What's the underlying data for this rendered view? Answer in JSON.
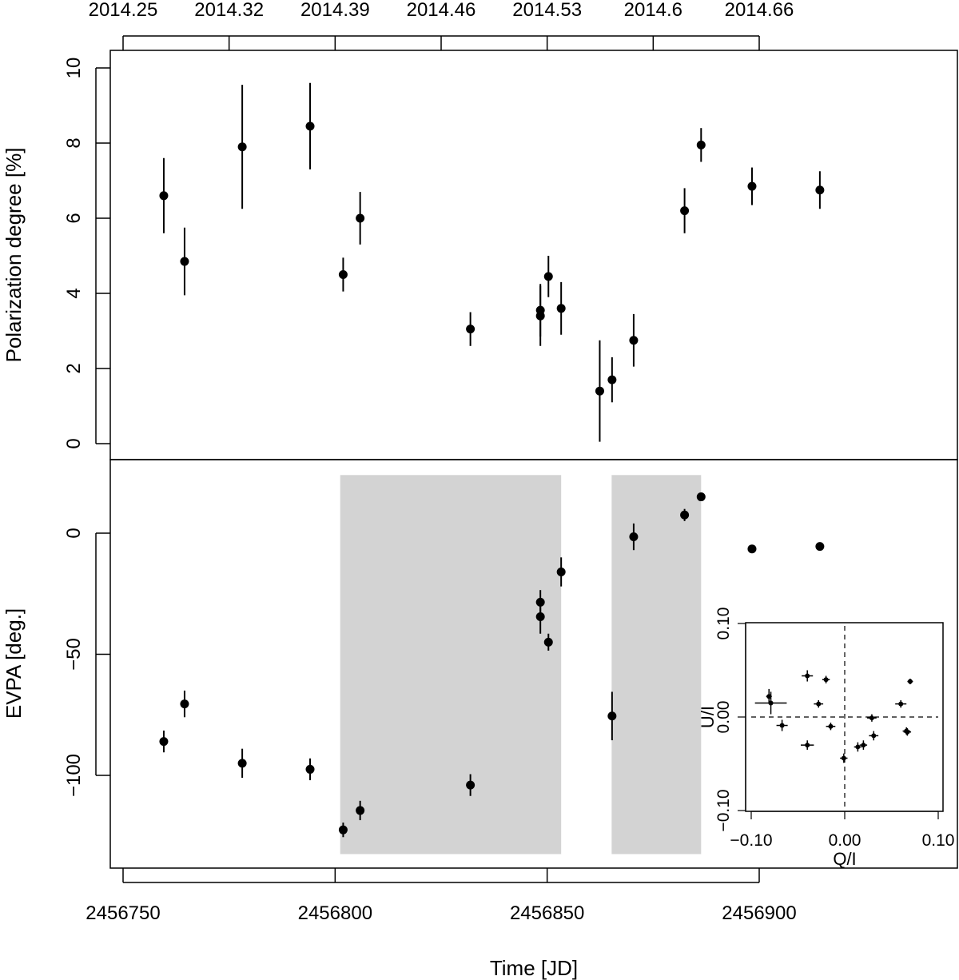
{
  "chart_data": [
    {
      "type": "scatter",
      "panel": "polarization",
      "xlabel": "Time [JD]",
      "ylabel": "Polarization degree [%]",
      "ylim": [
        0,
        10
      ],
      "yticks": [
        0,
        2,
        4,
        6,
        8,
        10
      ],
      "xlim": [
        2456750,
        2456918
      ],
      "xticks": [
        2456750,
        2456800,
        2456850,
        2456900
      ],
      "top_axis_ticks": [
        {
          "x": 2456750,
          "label": "2014.25"
        },
        {
          "x": 2456775,
          "label": "2014.32"
        },
        {
          "x": 2456800,
          "label": "2014.39"
        },
        {
          "x": 2456825,
          "label": "2014.46"
        },
        {
          "x": 2456850,
          "label": "2014.53"
        },
        {
          "x": 2456875,
          "label": "2014.6"
        },
        {
          "x": 2456900,
          "label": "2014.66"
        }
      ],
      "points": [
        {
          "x": 2456759.6,
          "y": 6.6,
          "err": 1.0
        },
        {
          "x": 2456764.5,
          "y": 4.85,
          "err": 0.9
        },
        {
          "x": 2456778.1,
          "y": 7.9,
          "err": 1.65
        },
        {
          "x": 2456794.1,
          "y": 8.45,
          "err": 1.15
        },
        {
          "x": 2456801.9,
          "y": 4.5,
          "err": 0.45
        },
        {
          "x": 2456805.9,
          "y": 6.0,
          "err": 0.7
        },
        {
          "x": 2456831.9,
          "y": 3.05,
          "err": 0.45
        },
        {
          "x": 2456848.4,
          "y": 3.55,
          "err": 0.7
        },
        {
          "x": 2456848.4,
          "y": 3.4,
          "err": 0.8
        },
        {
          "x": 2456850.3,
          "y": 4.45,
          "err": 0.55
        },
        {
          "x": 2456853.3,
          "y": 3.6,
          "err": 0.7
        },
        {
          "x": 2456862.4,
          "y": 1.4,
          "err": 1.35
        },
        {
          "x": 2456865.3,
          "y": 1.7,
          "err": 0.6
        },
        {
          "x": 2456870.4,
          "y": 2.75,
          "err": 0.7
        },
        {
          "x": 2456882.4,
          "y": 6.2,
          "err": 0.6
        },
        {
          "x": 2456886.3,
          "y": 7.95,
          "err": 0.45
        },
        {
          "x": 2456898.3,
          "y": 6.85,
          "err": 0.5
        },
        {
          "x": 2456914.3,
          "y": 6.75,
          "err": 0.5
        }
      ]
    },
    {
      "type": "scatter",
      "panel": "evpa",
      "xlabel": "Time [JD]",
      "ylabel": "EVPA [deg.]",
      "ylim": [
        -138,
        30
      ],
      "yticks": [
        -100,
        -50,
        0
      ],
      "shaded_intervals": [
        [
          2456801.2,
          2456853.3
        ],
        [
          2456865.2,
          2456886.3
        ]
      ],
      "points": [
        {
          "x": 2456759.6,
          "y": -86,
          "err": 4.5
        },
        {
          "x": 2456764.5,
          "y": -70.5,
          "err": 5.5
        },
        {
          "x": 2456778.1,
          "y": -95,
          "err": 6
        },
        {
          "x": 2456794.1,
          "y": -97.5,
          "err": 4.5
        },
        {
          "x": 2456801.9,
          "y": -122.5,
          "err": 3
        },
        {
          "x": 2456805.9,
          "y": -114.5,
          "err": 4
        },
        {
          "x": 2456831.9,
          "y": -104,
          "err": 4.5
        },
        {
          "x": 2456848.4,
          "y": -28.5,
          "err": 5
        },
        {
          "x": 2456848.4,
          "y": -34.5,
          "err": 7
        },
        {
          "x": 2456850.3,
          "y": -45,
          "err": 3.5
        },
        {
          "x": 2456853.3,
          "y": -16,
          "err": 6
        },
        {
          "x": 2456865.3,
          "y": -75.5,
          "err": 10
        },
        {
          "x": 2456870.4,
          "y": -1.5,
          "err": 5.5
        },
        {
          "x": 2456882.4,
          "y": 7.5,
          "err": 2.5
        },
        {
          "x": 2456886.3,
          "y": 15,
          "err": 1.5
        },
        {
          "x": 2456898.3,
          "y": -6.5,
          "err": 1.5
        },
        {
          "x": 2456914.3,
          "y": -5.5,
          "err": 1.5
        }
      ]
    },
    {
      "type": "scatter",
      "panel": "qu-inset",
      "xlabel": "Q/I",
      "ylabel": "U/I",
      "xlim": [
        -0.105,
        0.105
      ],
      "ylim": [
        -0.105,
        0.105
      ],
      "xticks": [
        -0.1,
        0.0,
        0.1
      ],
      "xtick_labels": [
        "−0.10",
        "0.00",
        "0.10"
      ],
      "yticks": [
        -0.1,
        0.0,
        0.1
      ],
      "ytick_labels": [
        "−0.10",
        "0.00",
        "0.10"
      ],
      "points": [
        {
          "q": -0.081,
          "u": 0.022,
          "qerr": 0.003,
          "uerr": 0.008
        },
        {
          "q": -0.079,
          "u": 0.015,
          "qerr": 0.017,
          "uerr": 0.012
        },
        {
          "q": -0.067,
          "u": -0.009,
          "qerr": 0.006,
          "uerr": 0.006
        },
        {
          "q": -0.04,
          "u": 0.044,
          "qerr": 0.006,
          "uerr": 0.006
        },
        {
          "q": -0.04,
          "u": -0.03,
          "qerr": 0.007,
          "uerr": 0.005
        },
        {
          "q": -0.028,
          "u": 0.014,
          "qerr": 0.005,
          "uerr": 0.004
        },
        {
          "q": -0.02,
          "u": 0.04,
          "qerr": 0.004,
          "uerr": 0.004
        },
        {
          "q": -0.015,
          "u": -0.01,
          "qerr": 0.005,
          "uerr": 0.004
        },
        {
          "q": -0.001,
          "u": -0.044,
          "qerr": 0.004,
          "uerr": 0.005
        },
        {
          "q": 0.014,
          "u": -0.032,
          "qerr": 0.004,
          "uerr": 0.005
        },
        {
          "q": 0.02,
          "u": -0.03,
          "qerr": 0.004,
          "uerr": 0.005
        },
        {
          "q": 0.029,
          "u": -0.001,
          "qerr": 0.005,
          "uerr": 0.004
        },
        {
          "q": 0.031,
          "u": -0.02,
          "qerr": 0.005,
          "uerr": 0.005
        },
        {
          "q": 0.06,
          "u": 0.014,
          "qerr": 0.006,
          "uerr": 0.004
        },
        {
          "q": 0.066,
          "u": -0.015,
          "qerr": 0.004,
          "uerr": 0.004
        },
        {
          "q": 0.067,
          "u": -0.016,
          "qerr": 0.004,
          "uerr": 0.004
        },
        {
          "q": 0.07,
          "u": 0.038,
          "qerr": 0.003,
          "uerr": 0.003
        }
      ]
    }
  ]
}
